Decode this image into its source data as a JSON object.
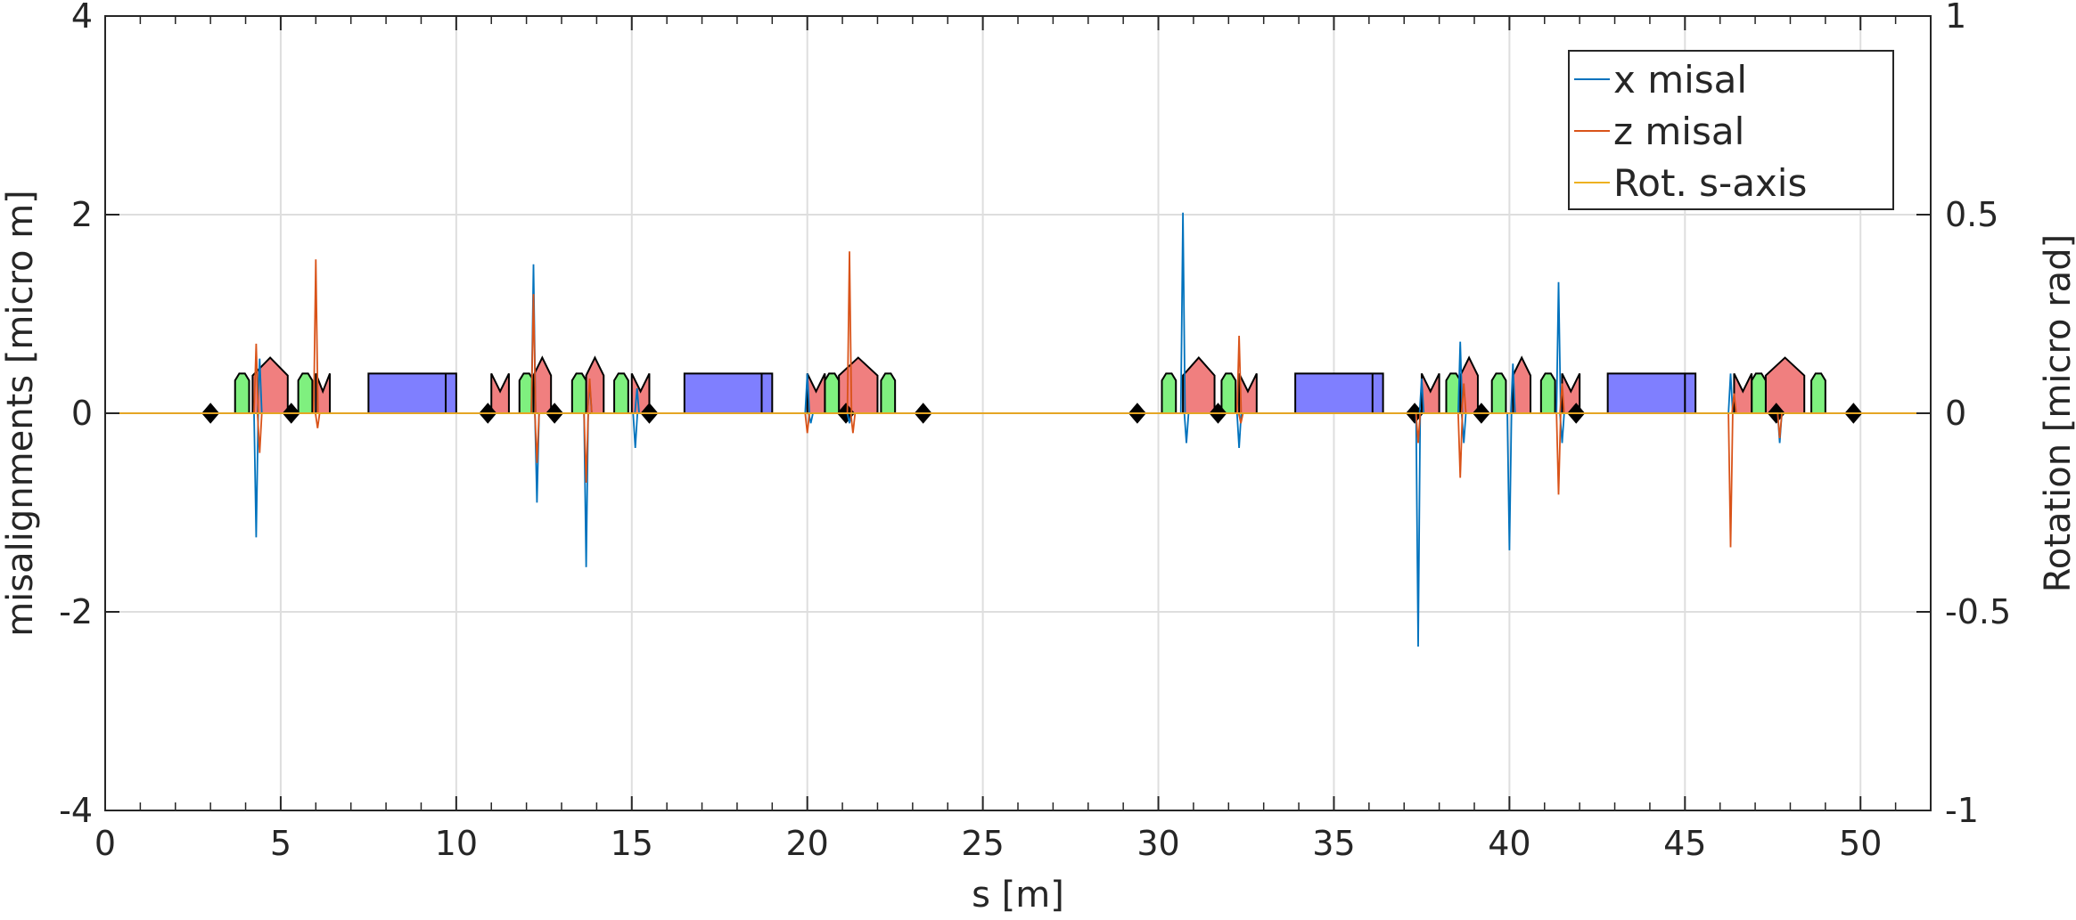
{
  "chart_data": {
    "type": "line",
    "xlabel": "s [m]",
    "ylabel_left": "misalignments [micro m]",
    "ylabel_right": "Rotation [micro rad]",
    "xlim": [
      0,
      52
    ],
    "ylim_left": [
      -4,
      4
    ],
    "ylim_right": [
      -1,
      1
    ],
    "x_ticks": [
      0,
      5,
      10,
      15,
      20,
      25,
      30,
      35,
      40,
      45,
      50
    ],
    "x_tick_labels": [
      "0",
      "5",
      "10",
      "15",
      "20",
      "25",
      "30",
      "35",
      "40",
      "45",
      "50"
    ],
    "y_ticks_left": [
      -4,
      -2,
      0,
      2,
      4
    ],
    "y_tick_labels_left": [
      "-4",
      "-2",
      "0",
      "2",
      "4"
    ],
    "y_ticks_right": [
      -1,
      -0.5,
      0,
      0.5,
      1
    ],
    "y_tick_labels_right": [
      "-1",
      "-0.5",
      "0",
      "0.5",
      "1"
    ],
    "grid": true,
    "legend_position": "top-right",
    "series": [
      {
        "name": "x misal",
        "color": "#0072BD",
        "axis": "left",
        "spikes": [
          [
            4.3,
            -1.25
          ],
          [
            4.4,
            0.55
          ],
          [
            12.2,
            1.5
          ],
          [
            12.3,
            -0.9
          ],
          [
            13.7,
            -1.55
          ],
          [
            13.8,
            0.3
          ],
          [
            15.1,
            -0.35
          ],
          [
            15.15,
            0.25
          ],
          [
            20.0,
            0.4
          ],
          [
            20.1,
            -0.1
          ],
          [
            21.2,
            -0.1
          ],
          [
            30.7,
            2.02
          ],
          [
            30.8,
            -0.3
          ],
          [
            32.3,
            -0.35
          ],
          [
            37.4,
            -2.35
          ],
          [
            37.5,
            0.35
          ],
          [
            38.6,
            0.72
          ],
          [
            38.7,
            -0.3
          ],
          [
            40.0,
            -1.38
          ],
          [
            40.1,
            0.5
          ],
          [
            41.4,
            1.32
          ],
          [
            41.5,
            -0.3
          ],
          [
            46.3,
            0.4
          ],
          [
            47.7,
            -0.3
          ]
        ]
      },
      {
        "name": "z misal",
        "color": "#D95319",
        "axis": "left",
        "spikes": [
          [
            4.3,
            0.7
          ],
          [
            4.4,
            -0.4
          ],
          [
            6.0,
            1.55
          ],
          [
            6.05,
            -0.15
          ],
          [
            12.2,
            1.2
          ],
          [
            12.3,
            -0.5
          ],
          [
            13.7,
            -0.7
          ],
          [
            13.8,
            0.35
          ],
          [
            20.0,
            -0.2
          ],
          [
            21.2,
            1.63
          ],
          [
            21.3,
            -0.2
          ],
          [
            32.3,
            0.78
          ],
          [
            32.35,
            -0.1
          ],
          [
            37.4,
            -0.3
          ],
          [
            38.6,
            -0.65
          ],
          [
            38.7,
            0.3
          ],
          [
            41.4,
            -0.82
          ],
          [
            41.5,
            0.3
          ],
          [
            46.3,
            -1.35
          ],
          [
            46.4,
            0.2
          ],
          [
            47.7,
            -0.25
          ]
        ]
      },
      {
        "name": "Rot. s-axis",
        "color": "#EDB120",
        "axis": "right",
        "values": [
          [
            0,
            0
          ],
          [
            52,
            0
          ]
        ]
      }
    ],
    "lattice": {
      "quadrupoles_red": [
        [
          4.2,
          5.2
        ],
        [
          12.2,
          12.7
        ],
        [
          13.7,
          14.2
        ],
        [
          20.9,
          22.0
        ],
        [
          30.7,
          31.6
        ],
        [
          38.6,
          39.1
        ],
        [
          40.1,
          40.6
        ],
        [
          47.3,
          48.4
        ]
      ],
      "sextupoles_green": [
        [
          3.7,
          4.1
        ],
        [
          5.5,
          5.9
        ],
        [
          11.8,
          12.2
        ],
        [
          13.3,
          13.7
        ],
        [
          14.5,
          14.9
        ],
        [
          20.5,
          20.9
        ],
        [
          22.1,
          22.5
        ],
        [
          30.1,
          30.5
        ],
        [
          31.8,
          32.2
        ],
        [
          38.2,
          38.6
        ],
        [
          39.5,
          39.9
        ],
        [
          40.9,
          41.3
        ],
        [
          46.9,
          47.3
        ],
        [
          48.6,
          49.0
        ]
      ],
      "multipoles_notched": [
        [
          6.0,
          6.4
        ],
        [
          11.0,
          11.5
        ],
        [
          15.0,
          15.5
        ],
        [
          20.0,
          20.5
        ],
        [
          32.3,
          32.8
        ],
        [
          37.5,
          38.0
        ],
        [
          41.5,
          42.0
        ],
        [
          46.4,
          46.9
        ]
      ],
      "dipoles_blue": [
        [
          7.5,
          10.0
        ],
        [
          16.5,
          19.0
        ],
        [
          33.9,
          36.4
        ],
        [
          42.8,
          45.3
        ]
      ],
      "bpm_markers": [
        3.0,
        5.3,
        10.9,
        12.8,
        15.5,
        21.1,
        23.3,
        29.4,
        31.7,
        37.3,
        39.2,
        41.9,
        47.6,
        49.8
      ]
    }
  }
}
